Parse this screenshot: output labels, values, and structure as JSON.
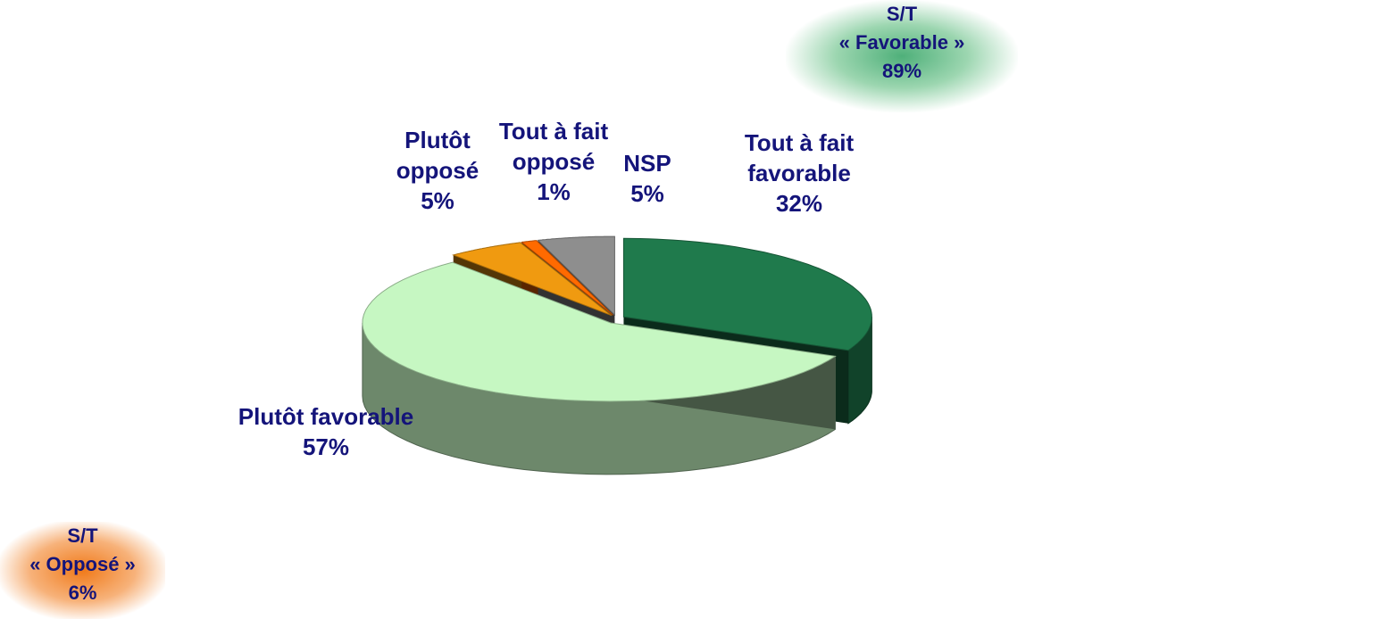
{
  "chart_data": {
    "type": "pie",
    "categories": [
      "Tout à fait favorable",
      "Plutôt favorable",
      "Plutôt opposé",
      "Tout à fait opposé",
      "NSP"
    ],
    "values": [
      32,
      57,
      5,
      1,
      5
    ],
    "value_labels": [
      "32%",
      "57%",
      "5%",
      "1%",
      "5%"
    ],
    "colors": [
      "#1f7a4c",
      "#c6f7c2",
      "#f09a10",
      "#ff6a00",
      "#8e8e8e"
    ],
    "annotations": [
      [
        "S/T",
        "« Favorable »",
        "89%"
      ],
      [
        "S/T",
        "« Opposé »",
        "6%"
      ]
    ]
  }
}
